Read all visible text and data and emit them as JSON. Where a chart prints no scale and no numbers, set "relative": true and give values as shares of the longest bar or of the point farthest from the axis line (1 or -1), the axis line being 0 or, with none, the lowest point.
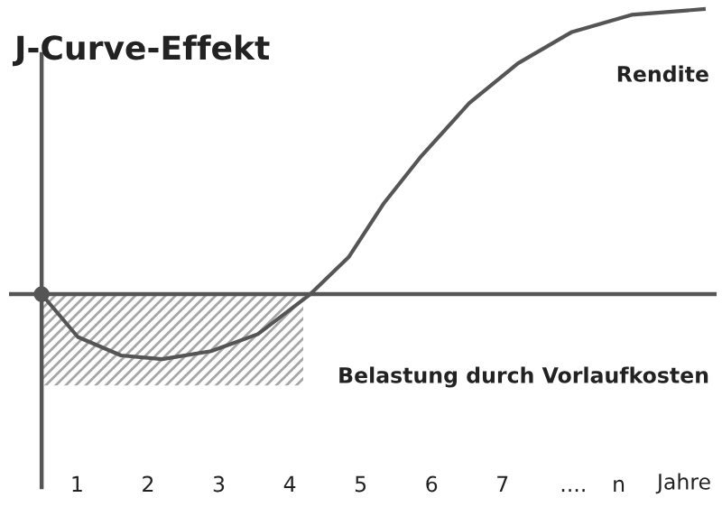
{
  "chart_data": {
    "type": "line",
    "title": "J-Curve-Effekt",
    "xlabel": "Jahre",
    "relative": true,
    "tick_labels": "x",
    "xlim": [
      0.04,
      10.02
    ],
    "ref_lines": [
      {
        "axis": "x",
        "value": 0.5,
        "color": "#555555"
      }
    ],
    "xticks": [
      1,
      2,
      3,
      4,
      5,
      6,
      7,
      {
        "value": 8,
        "label": "...."
      },
      {
        "value": 8.64,
        "label": "n"
      }
    ],
    "series": [
      {
        "type": "area",
        "name": "Belastung durch Vorlaufkosten",
        "color": "#a6a6a6",
        "x": [
          0.5,
          4.19
        ],
        "values": [
          -0.32,
          -0.32
        ]
      },
      {
        "name": "Rendite",
        "color": "#555555",
        "x": [
          0.5,
          1.01,
          1.62,
          2.2,
          2.89,
          3.55,
          4.29,
          4.83,
          5.33,
          5.84,
          6.53,
          7.22,
          7.98,
          8.82,
          9.84
        ],
        "values": [
          0,
          -0.15,
          -0.215,
          -0.228,
          -0.2,
          -0.14,
          0,
          0.13,
          0.32,
          0.48,
          0.67,
          0.81,
          0.92,
          0.98,
          1.0
        ]
      },
      {
        "type": "scatter",
        "color": "#555555",
        "marker": "circle",
        "x": [
          0.5
        ],
        "values": [
          0
        ]
      }
    ]
  }
}
